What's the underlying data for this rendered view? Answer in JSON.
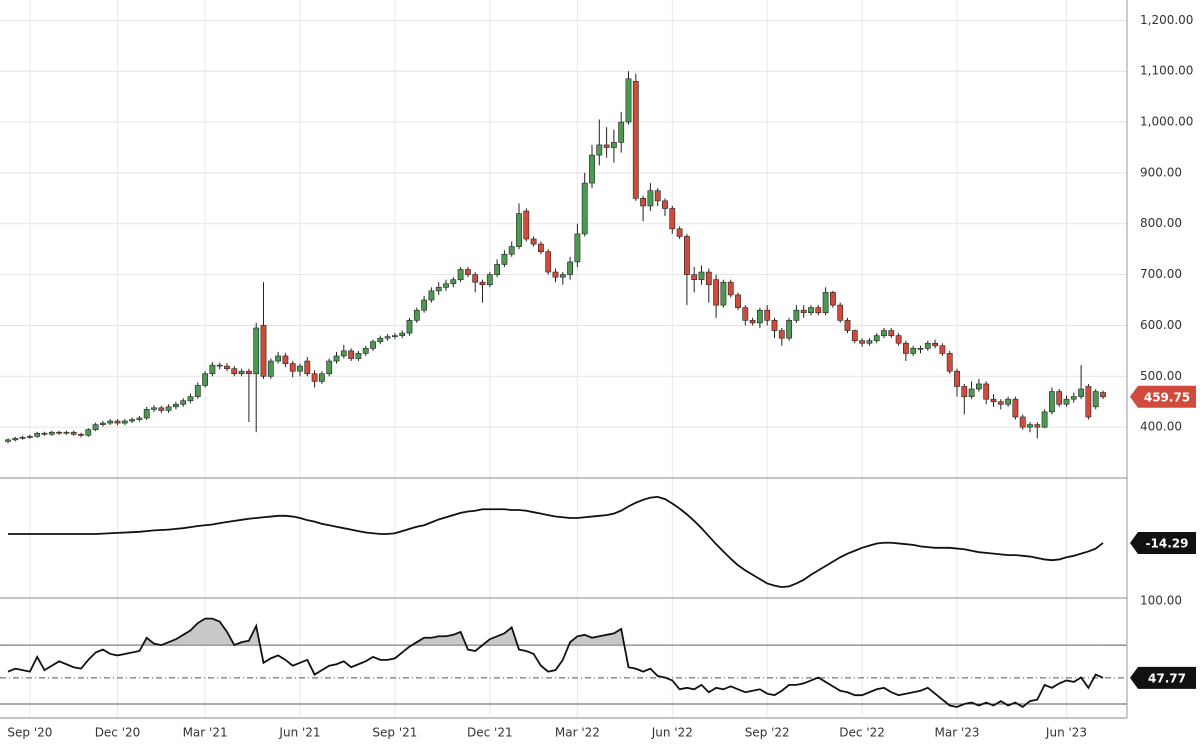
{
  "chart_data": [
    {
      "type": "candlestick",
      "up_color": "#4c9a52",
      "down_color": "#d14b3d",
      "grid": true,
      "open": [
        372,
        375,
        378,
        380,
        382,
        388,
        386,
        390,
        388,
        390,
        386,
        384,
        395,
        405,
        408,
        412,
        408,
        412,
        415,
        418,
        435,
        438,
        433,
        440,
        445,
        452,
        460,
        482,
        505,
        522,
        520,
        515,
        505,
        510,
        505,
        600,
        500,
        530,
        540,
        525,
        510,
        530,
        505,
        490,
        505,
        530,
        540,
        550,
        535,
        545,
        555,
        568,
        575,
        578,
        580,
        585,
        610,
        630,
        650,
        668,
        675,
        682,
        690,
        710,
        700,
        685,
        680,
        700,
        720,
        740,
        755,
        825,
        770,
        760,
        745,
        705,
        695,
        700,
        725,
        780,
        880,
        935,
        955,
        950,
        960,
        1000,
        1080,
        850,
        835,
        865,
        845,
        830,
        790,
        775,
        700,
        690,
        705,
        690,
        640,
        685,
        660,
        635,
        610,
        605,
        630,
        610,
        590,
        575,
        610,
        630,
        625,
        635,
        625,
        665,
        640,
        610,
        590,
        570,
        565,
        570,
        580,
        590,
        580,
        565,
        545,
        555,
        555,
        565,
        560,
        545,
        510,
        480,
        460,
        475,
        485,
        455,
        450,
        445,
        455,
        420,
        400,
        405,
        400,
        430,
        470,
        445,
        455,
        460,
        480,
        440,
        468
      ],
      "high": [
        378,
        381,
        383,
        385,
        391,
        391,
        393,
        393,
        393,
        393,
        389,
        398,
        409,
        412,
        416,
        416,
        416,
        419,
        422,
        440,
        443,
        442,
        445,
        450,
        457,
        466,
        488,
        510,
        528,
        527,
        526,
        520,
        515,
        515,
        605,
        685,
        535,
        548,
        546,
        530,
        525,
        538,
        512,
        510,
        535,
        548,
        562,
        555,
        550,
        560,
        572,
        580,
        583,
        585,
        590,
        615,
        635,
        658,
        675,
        685,
        690,
        695,
        715,
        715,
        705,
        690,
        705,
        730,
        748,
        765,
        840,
        830,
        775,
        765,
        750,
        712,
        705,
        735,
        800,
        900,
        955,
        1005,
        990,
        985,
        1020,
        1100,
        1095,
        855,
        880,
        870,
        850,
        835,
        795,
        780,
        715,
        718,
        712,
        700,
        690,
        690,
        665,
        640,
        615,
        635,
        640,
        615,
        595,
        615,
        640,
        640,
        640,
        640,
        675,
        668,
        645,
        615,
        592,
        575,
        575,
        585,
        595,
        595,
        585,
        570,
        560,
        560,
        570,
        572,
        565,
        550,
        515,
        485,
        490,
        495,
        490,
        465,
        455,
        460,
        460,
        425,
        410,
        410,
        435,
        478,
        475,
        462,
        468,
        522,
        485,
        475,
        472
      ],
      "low": [
        368,
        372,
        375,
        377,
        379,
        383,
        383,
        385,
        385,
        383,
        380,
        381,
        392,
        401,
        404,
        404,
        404,
        408,
        411,
        414,
        430,
        428,
        428,
        435,
        440,
        447,
        456,
        478,
        500,
        514,
        510,
        500,
        500,
        410,
        390,
        495,
        495,
        525,
        518,
        498,
        500,
        500,
        478,
        485,
        500,
        525,
        535,
        530,
        530,
        540,
        550,
        563,
        570,
        573,
        575,
        580,
        605,
        625,
        645,
        660,
        668,
        675,
        685,
        695,
        665,
        645,
        675,
        695,
        715,
        735,
        750,
        765,
        755,
        740,
        700,
        685,
        680,
        690,
        715,
        775,
        870,
        915,
        930,
        920,
        940,
        995,
        845,
        805,
        825,
        835,
        815,
        780,
        770,
        640,
        665,
        680,
        645,
        615,
        635,
        655,
        630,
        600,
        600,
        595,
        600,
        575,
        560,
        570,
        605,
        615,
        620,
        620,
        620,
        635,
        605,
        585,
        565,
        558,
        560,
        565,
        575,
        575,
        560,
        530,
        540,
        545,
        550,
        555,
        540,
        505,
        460,
        425,
        455,
        470,
        445,
        440,
        435,
        440,
        415,
        395,
        390,
        378,
        398,
        425,
        440,
        440,
        448,
        455,
        415,
        435,
        455
      ],
      "close": [
        375,
        378,
        380,
        382,
        388,
        386,
        390,
        388,
        390,
        386,
        384,
        395,
        405,
        408,
        412,
        408,
        412,
        415,
        418,
        435,
        438,
        433,
        440,
        445,
        452,
        460,
        482,
        505,
        522,
        520,
        515,
        505,
        510,
        505,
        595,
        500,
        530,
        540,
        525,
        510,
        520,
        505,
        490,
        505,
        530,
        540,
        550,
        535,
        545,
        555,
        568,
        575,
        578,
        580,
        585,
        610,
        630,
        650,
        668,
        675,
        682,
        690,
        710,
        700,
        685,
        680,
        700,
        720,
        740,
        755,
        820,
        770,
        760,
        745,
        705,
        695,
        700,
        725,
        780,
        880,
        935,
        955,
        950,
        960,
        1000,
        1085,
        850,
        835,
        865,
        845,
        830,
        790,
        775,
        700,
        690,
        705,
        680,
        640,
        685,
        660,
        635,
        610,
        605,
        630,
        610,
        590,
        575,
        610,
        630,
        625,
        635,
        625,
        665,
        640,
        610,
        590,
        570,
        565,
        570,
        580,
        590,
        580,
        565,
        545,
        555,
        555,
        565,
        560,
        545,
        510,
        480,
        460,
        475,
        485,
        455,
        450,
        445,
        455,
        420,
        400,
        405,
        400,
        430,
        470,
        445,
        455,
        460,
        475,
        420,
        470,
        459.75
      ],
      "ylim": [
        300,
        1240
      ],
      "yticks": [
        {
          "value": 400,
          "label": "400.00"
        },
        {
          "value": 500,
          "label": "500.00"
        },
        {
          "value": 600,
          "label": "600.00"
        },
        {
          "value": 700,
          "label": "700.00"
        },
        {
          "value": 800,
          "label": "800.00"
        },
        {
          "value": 900,
          "label": "900.00"
        },
        {
          "value": 1000,
          "label": "1,000.00"
        },
        {
          "value": 1100,
          "label": "1,100.00"
        },
        {
          "value": 1200,
          "label": "1,200.00"
        }
      ],
      "xticks": [
        {
          "value": 3,
          "label": "Sep '20"
        },
        {
          "value": 15,
          "label": "Dec '20"
        },
        {
          "value": 27,
          "label": "Mar '21"
        },
        {
          "value": 40,
          "label": "Jun '21"
        },
        {
          "value": 53,
          "label": "Sep '21"
        },
        {
          "value": 66,
          "label": "Dec '21"
        },
        {
          "value": 78,
          "label": "Mar '22"
        },
        {
          "value": 91,
          "label": "Jun '22"
        },
        {
          "value": 104,
          "label": "Sep '22"
        },
        {
          "value": 117,
          "label": "Dec '22"
        },
        {
          "value": 130,
          "label": "Mar '23"
        },
        {
          "value": 145,
          "label": "Jun '23"
        }
      ]
    },
    {
      "type": "line",
      "color": "#111111",
      "ylim": [
        -90,
        75
      ],
      "values": [
        -2,
        -2,
        -2,
        -2,
        -2,
        -2,
        -2,
        -2,
        -2,
        -2,
        -2,
        -2,
        -2,
        -1.5,
        -1,
        -0.5,
        0,
        0.5,
        1,
        2,
        3,
        3.5,
        4,
        5,
        6,
        7.5,
        9,
        10,
        11,
        13,
        14.5,
        16,
        17.5,
        19,
        20,
        21,
        22,
        23,
        23,
        22,
        20,
        17,
        15,
        12,
        10,
        8,
        6,
        4,
        2,
        0,
        -1,
        -2,
        -2,
        -1,
        2,
        5,
        8,
        10,
        14,
        18,
        21,
        24,
        27,
        29,
        30,
        32,
        32,
        32,
        32,
        31,
        31,
        30,
        28,
        26,
        24,
        22,
        21,
        20,
        20,
        21,
        22,
        23,
        24,
        26,
        30,
        36,
        41,
        45,
        48,
        49,
        46,
        40,
        33,
        25,
        16,
        6,
        -5,
        -16,
        -26,
        -36,
        -45,
        -52,
        -58,
        -64,
        -70,
        -73,
        -75,
        -74,
        -70,
        -65,
        -58,
        -52,
        -46,
        -40,
        -34,
        -29,
        -25,
        -21,
        -18,
        -15,
        -14,
        -14,
        -15,
        -16,
        -17,
        -19,
        -20,
        -21,
        -21,
        -21,
        -22,
        -23,
        -25,
        -27,
        -28,
        -29,
        -30,
        -31,
        -31,
        -32,
        -33,
        -35,
        -37,
        -38,
        -37,
        -34,
        -32,
        -29,
        -26,
        -22,
        -14.29
      ]
    },
    {
      "type": "line",
      "color": "#111111",
      "ylim": [
        20.5,
        102
      ],
      "levels": [
        70,
        30
      ],
      "yticks": [
        {
          "value": 100,
          "label": "100.00"
        }
      ],
      "values": [
        52,
        54,
        53,
        52,
        62,
        53,
        56,
        59,
        57,
        55,
        54,
        60,
        65,
        67,
        64,
        63,
        64,
        65,
        66,
        75,
        71,
        70,
        72,
        74,
        77,
        80,
        85,
        88,
        88,
        86,
        79,
        70,
        72,
        73,
        83,
        58,
        61,
        63,
        60,
        56,
        58,
        60,
        50,
        53,
        56,
        57,
        59,
        55,
        57,
        59,
        62,
        60,
        60,
        61,
        65,
        69,
        72,
        75,
        75,
        76,
        76,
        77,
        79,
        67,
        66,
        70,
        74,
        76,
        78,
        82,
        67,
        66,
        64,
        56,
        52,
        53,
        60,
        72,
        76,
        77,
        75,
        76,
        77,
        78,
        81,
        55,
        54,
        52,
        54,
        49,
        48,
        46,
        40,
        41,
        40,
        43,
        38,
        41,
        40,
        42,
        40,
        38,
        39,
        40,
        37,
        36,
        39,
        43,
        43,
        44,
        46,
        48,
        45,
        42,
        39,
        38,
        36,
        36,
        38,
        40,
        41,
        38,
        36,
        37,
        38,
        39,
        41,
        37,
        33,
        29,
        28,
        30,
        31,
        29,
        31,
        29,
        32,
        29,
        31,
        28,
        32,
        33,
        43,
        41,
        44,
        46,
        45,
        48,
        41,
        50,
        47.77
      ]
    }
  ]
}
